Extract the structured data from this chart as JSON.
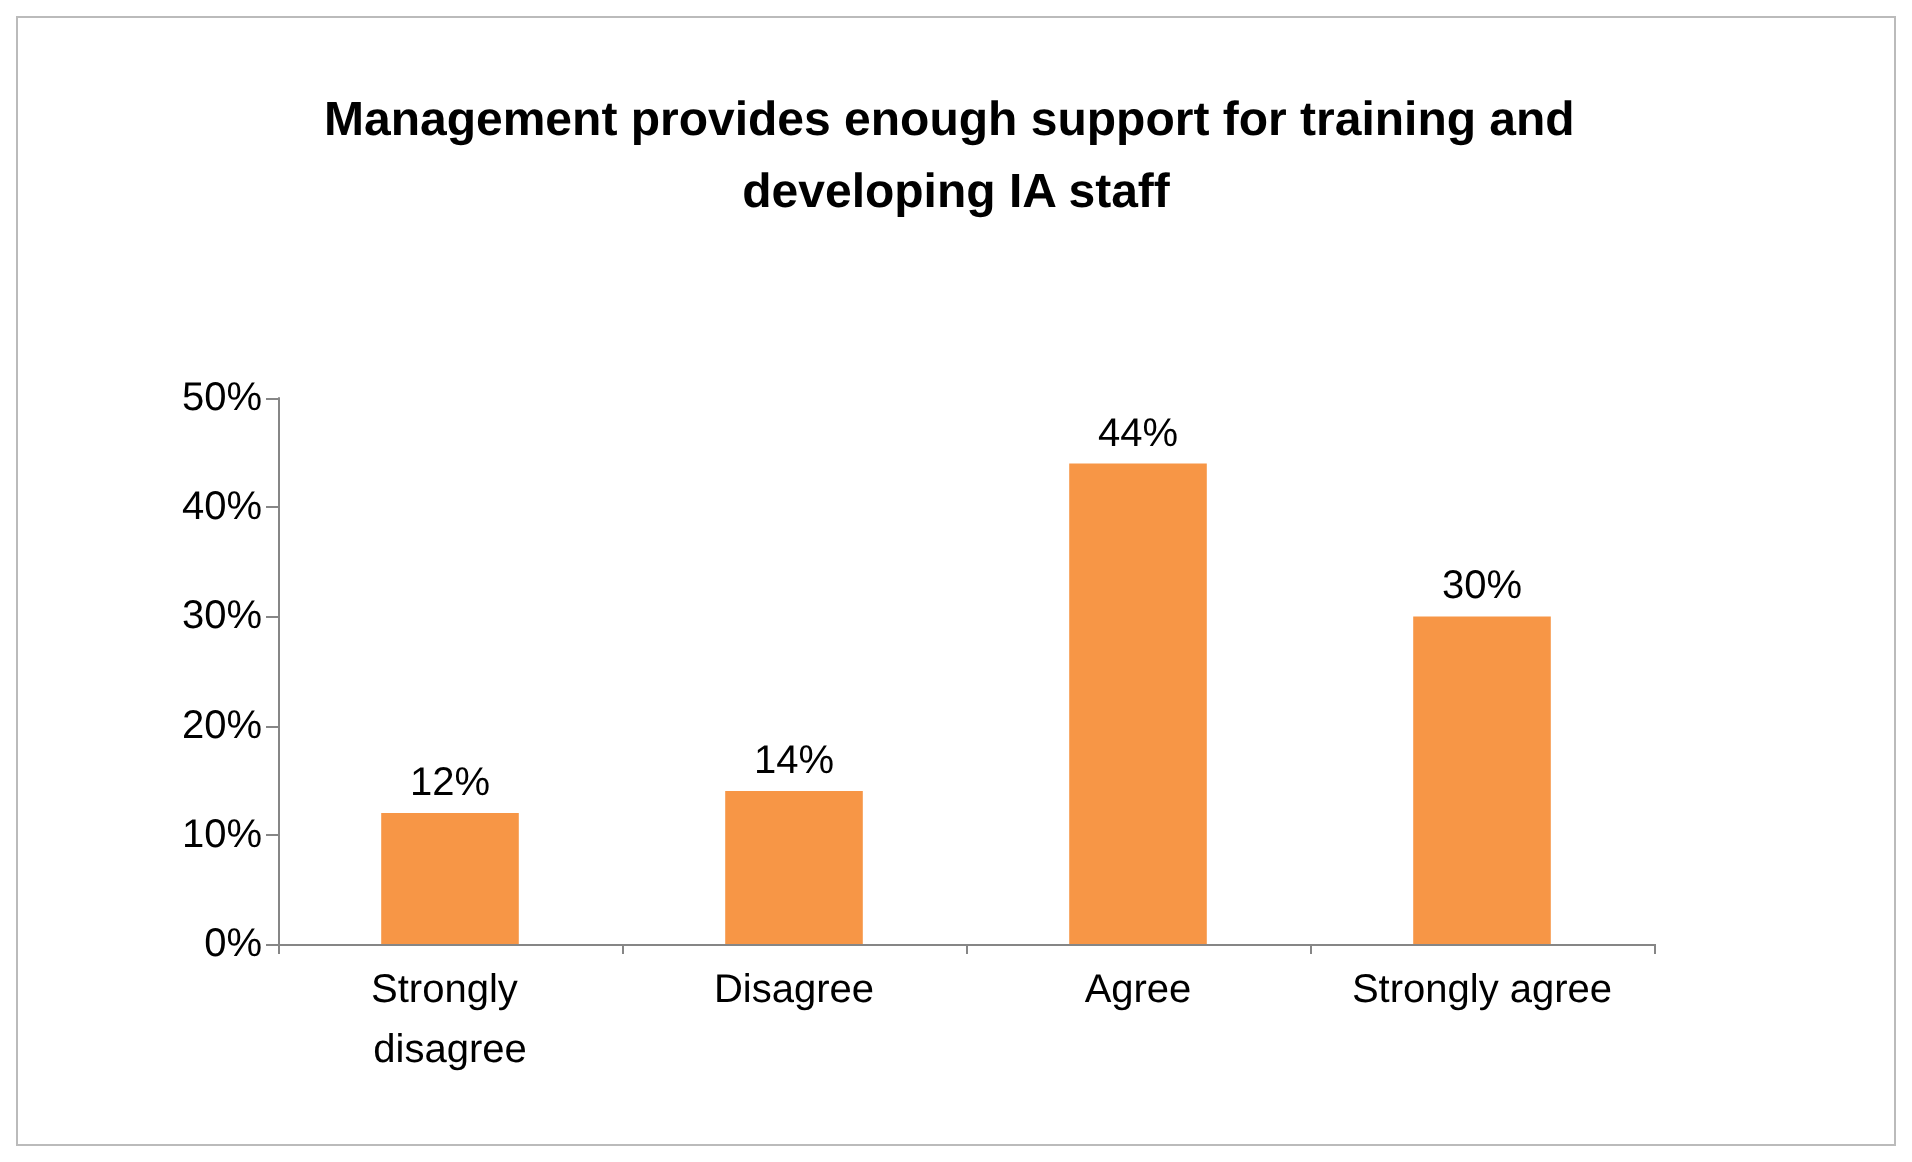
{
  "chart_data": {
    "type": "bar",
    "title": "Management provides enough support for training and developing IA staff",
    "categories": [
      "Strongly disagree",
      "Disagree",
      "Agree",
      "Strongly agree"
    ],
    "values": [
      12,
      14,
      44,
      30
    ],
    "color": "#f79646",
    "value_labels": [
      "12%",
      "14%",
      "44%",
      "30%"
    ],
    "ylim": [
      0,
      50
    ],
    "yticks": [
      {
        "value": 0,
        "label": "0%"
      },
      {
        "value": 10,
        "label": "10%"
      },
      {
        "value": 20,
        "label": "20%"
      },
      {
        "value": 30,
        "label": "30%"
      },
      {
        "value": 40,
        "label": "40%"
      },
      {
        "value": 50,
        "label": "50%"
      }
    ],
    "grid": false
  }
}
